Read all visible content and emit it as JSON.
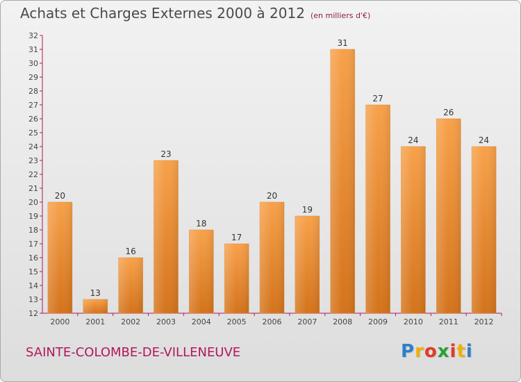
{
  "title": "Achats et Charges Externes 2000 à 2012",
  "unit": "(en milliers d'€)",
  "commune": "SAINTE-COLOMBE-DE-VILLENEUVE",
  "logo": {
    "letters": [
      "P",
      "r",
      "o",
      "x",
      "i",
      "t",
      "i"
    ],
    "colors": [
      "#2f7fc9",
      "#f0b000",
      "#e23a2a",
      "#2aa032",
      "#e23a2a",
      "#f0b000",
      "#2f7fc9"
    ]
  },
  "chart_data": {
    "type": "bar",
    "title": "Achats et Charges Externes 2000 à 2012",
    "subtitle": "(en milliers d'€)",
    "xlabel": "",
    "ylabel": "",
    "categories": [
      "2000",
      "2001",
      "2002",
      "2003",
      "2004",
      "2005",
      "2006",
      "2007",
      "2008",
      "2009",
      "2010",
      "2011",
      "2012"
    ],
    "values": [
      20,
      13,
      16,
      23,
      18,
      17,
      20,
      19,
      31,
      27,
      24,
      26,
      24
    ],
    "ylim": [
      12,
      32
    ],
    "yticks": [
      12,
      13,
      14,
      15,
      16,
      17,
      18,
      19,
      20,
      21,
      22,
      23,
      24,
      25,
      26,
      27,
      28,
      29,
      30,
      31,
      32
    ],
    "grid": false,
    "bar_color": "#f0923a",
    "axis_color": "#b0185a"
  }
}
